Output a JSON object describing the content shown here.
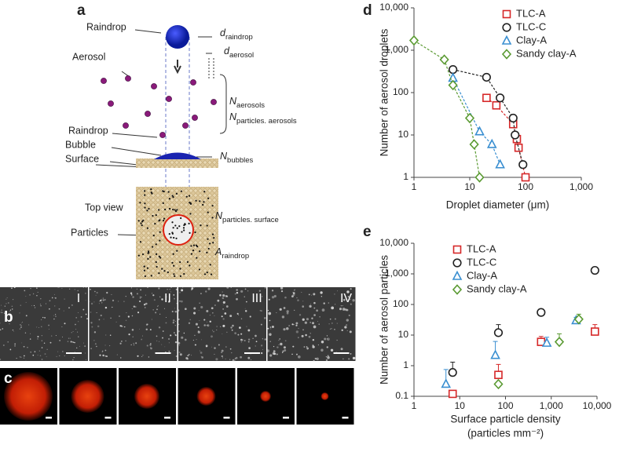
{
  "panels": {
    "a": "a",
    "b": "b",
    "c": "c",
    "d": "d",
    "e": "e"
  },
  "diagram": {
    "raindrop_top": "Raindrop",
    "aerosol": "Aerosol",
    "raindrop_bottom": "Raindrop",
    "bubble": "Bubble",
    "surface": "Surface",
    "top_view": "Top view",
    "particles": "Particles",
    "d_raindrop": {
      "main": "d",
      "sub": "raindrop"
    },
    "d_aerosol": {
      "main": "d",
      "sub": "aerosol"
    },
    "n_aerosols": {
      "main": "N",
      "sub": "aerosols"
    },
    "n_particles_aerosols": {
      "main": "N",
      "sub": "particles. aerosols"
    },
    "n_bubbles": {
      "main": "N",
      "sub": "bubbles"
    },
    "n_particles_surface": {
      "main": "N",
      "sub": "particles. surface"
    },
    "a_raindrop": {
      "main": "A",
      "sub": "raindrop"
    }
  },
  "micrographs": [
    "I",
    "II",
    "III",
    "IV"
  ],
  "chart_data": [
    {
      "type": "scatter",
      "x_label": "Droplet diameter (μm)",
      "y_label": "Number of aerosol droplets",
      "log_x": true,
      "log_y": true,
      "xlim": [
        1,
        1000
      ],
      "ylim": [
        1,
        10000
      ],
      "xticks": [
        1,
        10,
        100,
        {
          "value": 1000,
          "label": "1,000"
        }
      ],
      "yticks": [
        1,
        10,
        100,
        {
          "value": 1000,
          "label": "1,000"
        },
        {
          "value": 10000,
          "label": "10,000"
        }
      ],
      "legend": "top-right",
      "fit_lines": true,
      "series": [
        {
          "name": "TLC-A",
          "color": "#d62728",
          "marker": "square",
          "x": [
            20,
            30,
            60,
            70,
            75,
            100
          ],
          "values": [
            75,
            50,
            18,
            8,
            5,
            1
          ]
        },
        {
          "name": "TLC-C",
          "color": "#222222",
          "marker": "circle",
          "x": [
            5,
            20,
            35,
            60,
            65,
            90
          ],
          "values": [
            350,
            230,
            75,
            25,
            10,
            2
          ]
        },
        {
          "name": "Clay-A",
          "color": "#3a8fd1",
          "marker": "triangle",
          "x": [
            5,
            15,
            25,
            35
          ],
          "values": [
            220,
            12,
            6,
            2
          ]
        },
        {
          "name": "Sandy clay-A",
          "color": "#5a9a32",
          "marker": "diamond",
          "x": [
            1,
            3.5,
            5,
            10,
            12,
            15
          ],
          "values": [
            1700,
            600,
            150,
            25,
            6,
            1
          ]
        }
      ]
    },
    {
      "type": "scatter",
      "x_label": [
        "Surface particle density",
        "(particles mm⁻²)"
      ],
      "y_label": "Number of aerosol particles",
      "log_x": true,
      "log_y": true,
      "xlim": [
        1,
        10000
      ],
      "ylim": [
        0.1,
        10000
      ],
      "xticks": [
        1,
        10,
        100,
        {
          "value": 1000,
          "label": "1,000"
        },
        {
          "value": 10000,
          "label": "10,000"
        }
      ],
      "yticks": [
        0.1,
        1,
        10,
        100,
        {
          "value": 1000,
          "label": "1,000"
        },
        {
          "value": 10000,
          "label": "10,000"
        }
      ],
      "legend": "top-left",
      "fit_lines": false,
      "series": [
        {
          "name": "TLC-A",
          "color": "#d62728",
          "marker": "square",
          "x": [
            7,
            70,
            600,
            9000
          ],
          "values": [
            0.12,
            0.5,
            6,
            13
          ],
          "errors": [
            null,
            0.6,
            3,
            9
          ]
        },
        {
          "name": "TLC-C",
          "color": "#222222",
          "marker": "circle",
          "x": [
            7,
            70,
            600,
            9000
          ],
          "values": [
            0.6,
            12,
            55,
            1300
          ],
          "errors": [
            0.7,
            10,
            null,
            null
          ]
        },
        {
          "name": "Clay-A",
          "color": "#3a8fd1",
          "marker": "triangle",
          "x": [
            5,
            60,
            800,
            3500
          ],
          "values": [
            0.25,
            2.2,
            5.5,
            30
          ],
          "errors": [
            0.5,
            4,
            3,
            8
          ]
        },
        {
          "name": "Sandy clay-A",
          "color": "#5a9a32",
          "marker": "diamond",
          "x": [
            70,
            1500,
            4000
          ],
          "values": [
            0.25,
            6,
            33
          ],
          "errors": [
            null,
            5,
            15
          ]
        }
      ]
    }
  ]
}
